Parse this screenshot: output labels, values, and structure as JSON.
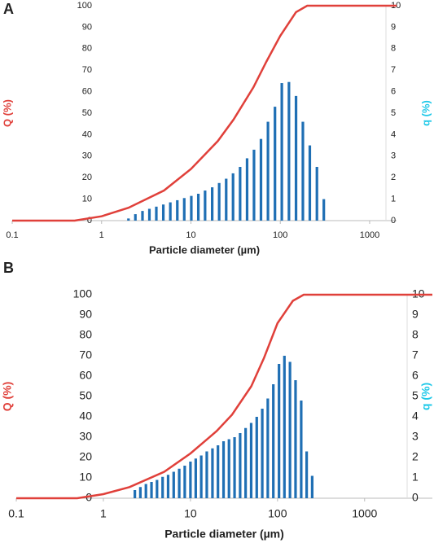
{
  "chart_data": [
    {
      "type": "bar",
      "panel_label": "A",
      "xlabel": "Particle diameter (µm)",
      "ylabel": "Q (%)",
      "y2label": "q (%)",
      "xscale": "log",
      "xlim": [
        0.1,
        2000
      ],
      "xticks": [
        0.1,
        1,
        10,
        100,
        1000
      ],
      "ylim": [
        0,
        100
      ],
      "yticks": [
        0,
        10,
        20,
        30,
        40,
        50,
        60,
        70,
        80,
        90,
        100
      ],
      "y2lim": [
        0,
        10
      ],
      "y2ticks": [
        0,
        1,
        2,
        3,
        4,
        5,
        6,
        7,
        8,
        9,
        10
      ],
      "series": [
        {
          "type": "line",
          "color": "#e0403a",
          "x": [
            0.1,
            0.5,
            1,
            2,
            5,
            10,
            20,
            30,
            50,
            70,
            100,
            150,
            200,
            2000
          ],
          "values": [
            0,
            0,
            2,
            6,
            14,
            24,
            37,
            47,
            62,
            74,
            86,
            97,
            100,
            100
          ]
        },
        {
          "type": "bar",
          "axis": "y2",
          "color": "#1f6fb4",
          "x": [
            2,
            2.39,
            2.87,
            3.43,
            4.1,
            4.91,
            5.88,
            7.04,
            8.42,
            10.1,
            12.1,
            14.4,
            17.3,
            20.7,
            24.8,
            29.6,
            35.5,
            42.5,
            50.8,
            60.8,
            72.8,
            87.2,
            104,
            125,
            150,
            179,
            214,
            257,
            307
          ],
          "values": [
            0.1,
            0.3,
            0.45,
            0.55,
            0.65,
            0.75,
            0.85,
            0.95,
            1.05,
            1.15,
            1.25,
            1.4,
            1.55,
            1.75,
            1.95,
            2.2,
            2.5,
            2.9,
            3.3,
            3.8,
            4.6,
            5.3,
            6.4,
            6.45,
            5.8,
            4.6,
            3.5,
            2.5,
            1.0
          ]
        }
      ]
    },
    {
      "type": "bar",
      "panel_label": "B",
      "xlabel": "Particle diameter (µm)",
      "ylabel": "Q (%)",
      "y2label": "q (%)",
      "xscale": "log",
      "xlim": [
        0.1,
        6000
      ],
      "xticks": [
        0.1,
        1,
        10,
        100,
        1000
      ],
      "ylim": [
        0,
        100
      ],
      "yticks": [
        0,
        10,
        20,
        30,
        40,
        50,
        60,
        70,
        80,
        90,
        100
      ],
      "y2lim": [
        0,
        10
      ],
      "y2ticks": [
        0,
        1,
        2,
        3,
        4,
        5,
        6,
        7,
        8,
        9,
        10
      ],
      "series": [
        {
          "type": "line",
          "color": "#e0403a",
          "x": [
            0.1,
            0.5,
            1,
            2,
            5,
            10,
            20,
            30,
            50,
            70,
            100,
            150,
            200,
            6000
          ],
          "values": [
            0,
            0,
            2,
            5.5,
            13,
            22,
            33,
            41,
            55,
            69,
            86,
            97,
            100,
            100
          ]
        },
        {
          "type": "bar",
          "axis": "y2",
          "color": "#1f6fb4",
          "x": [
            2.3,
            2.66,
            3.08,
            3.57,
            4.13,
            4.79,
            5.54,
            6.42,
            7.43,
            8.6,
            10,
            11.5,
            13.3,
            15.4,
            17.9,
            20.7,
            24,
            27.7,
            32.1,
            37.2,
            43,
            49.8,
            57.7,
            66.8,
            77.3,
            89.5,
            104,
            120,
            139,
            161,
            187,
            216,
            250
          ],
          "values": [
            0.4,
            0.55,
            0.7,
            0.8,
            0.9,
            1.05,
            1.15,
            1.3,
            1.45,
            1.6,
            1.8,
            1.95,
            2.1,
            2.3,
            2.45,
            2.6,
            2.8,
            2.9,
            3.0,
            3.2,
            3.45,
            3.7,
            4.0,
            4.4,
            4.9,
            5.6,
            6.6,
            7.0,
            6.7,
            5.8,
            4.8,
            2.3,
            1.1
          ]
        }
      ]
    }
  ]
}
